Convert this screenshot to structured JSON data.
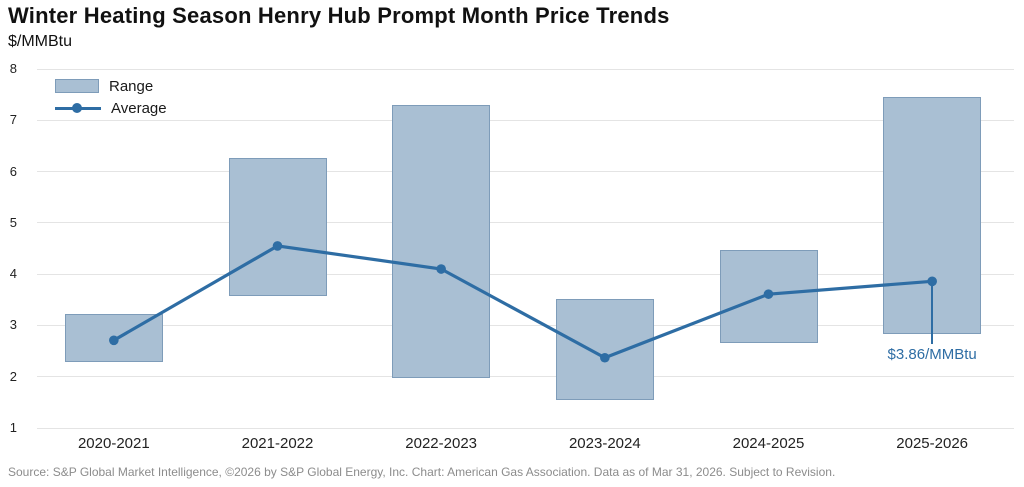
{
  "footer": {
    "source": "Source: S&P Global Market Intelligence, ©2026 by S&P Global Energy, Inc. Chart: American Gas Association. Data as of Mar 31, 2026. Subject to Revision."
  },
  "colors": {
    "bar_fill": "#a9bfd3",
    "bar_border": "#7e9cb9",
    "line": "#2e6da4",
    "grid": "#e4e4e4",
    "annotation": "#2e6da4",
    "title_text": "#111111",
    "axis_text": "#222222",
    "source_text": "#8c8c8c"
  },
  "chart_data": {
    "type": "bar",
    "subtype": "range-bars-with-average-line",
    "title": "Winter Heating Season Henry Hub Prompt Month Price Trends",
    "ylabel": "$/MMBtu",
    "categories": [
      "2020-2021",
      "2021-2022",
      "2022-2023",
      "2023-2024",
      "2024-2025",
      "2025-2026"
    ],
    "series": [
      {
        "name": "Range",
        "type": "range-bar",
        "low": [
          2.28,
          3.57,
          1.97,
          1.55,
          2.65,
          2.84
        ],
        "high": [
          3.23,
          6.26,
          7.3,
          3.51,
          4.48,
          7.46
        ]
      },
      {
        "name": "Average",
        "type": "line",
        "values": [
          2.71,
          4.55,
          4.1,
          2.37,
          3.61,
          3.86
        ]
      }
    ],
    "ylim": [
      1,
      8
    ],
    "yticks": [
      1,
      2,
      3,
      4,
      5,
      6,
      7,
      8
    ],
    "grid": true,
    "legend_position": "top-left",
    "annotation": {
      "series": "Average",
      "category": "2025-2026",
      "index": 5,
      "text": "$3.86/MMBtu"
    }
  }
}
